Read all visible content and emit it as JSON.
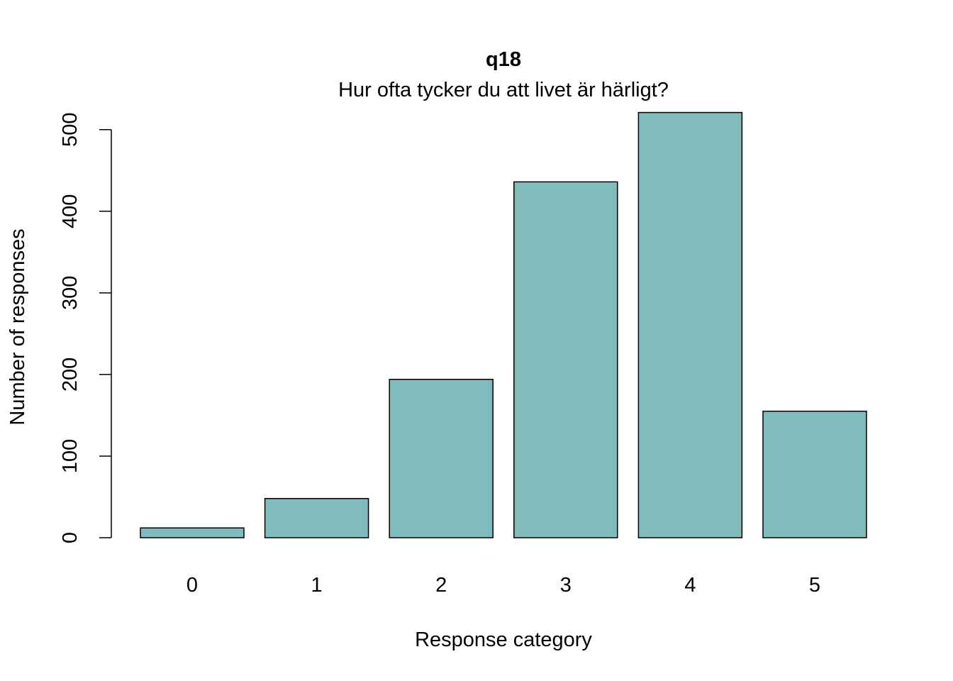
{
  "chart_data": {
    "type": "bar",
    "title": "q18",
    "subtitle": "Hur ofta tycker du att livet är härligt?",
    "xlabel": "Response category",
    "ylabel": "Number of responses",
    "categories": [
      "0",
      "1",
      "2",
      "3",
      "4",
      "5"
    ],
    "values": [
      12,
      48,
      194,
      436,
      521,
      155
    ],
    "yticks": [
      0,
      100,
      200,
      300,
      400,
      500
    ],
    "ylim": [
      0,
      521
    ],
    "grid": false,
    "legend": "none",
    "bar_color": "#80bcbc",
    "bar_border_color": "#000000"
  }
}
